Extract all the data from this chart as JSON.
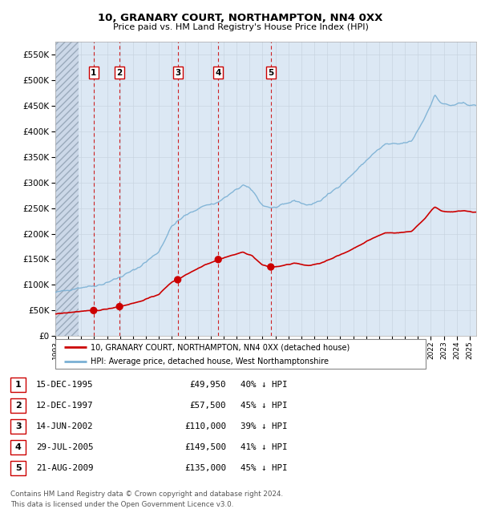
{
  "title": "10, GRANARY COURT, NORTHAMPTON, NN4 0XX",
  "subtitle": "Price paid vs. HM Land Registry's House Price Index (HPI)",
  "legend_property": "10, GRANARY COURT, NORTHAMPTON, NN4 0XX (detached house)",
  "legend_hpi": "HPI: Average price, detached house, West Northamptonshire",
  "footer": "Contains HM Land Registry data © Crown copyright and database right 2024.\nThis data is licensed under the Open Government Licence v3.0.",
  "sales": [
    {
      "num": 1,
      "date": "15-DEC-1995",
      "year": 1995.96,
      "price": 49950,
      "pct": "40% ↓ HPI"
    },
    {
      "num": 2,
      "date": "12-DEC-1997",
      "year": 1997.96,
      "price": 57500,
      "pct": "45% ↓ HPI"
    },
    {
      "num": 3,
      "date": "14-JUN-2002",
      "year": 2002.45,
      "price": 110000,
      "pct": "39% ↓ HPI"
    },
    {
      "num": 4,
      "date": "29-JUL-2005",
      "year": 2005.58,
      "price": 149500,
      "pct": "41% ↓ HPI"
    },
    {
      "num": 5,
      "date": "21-AUG-2009",
      "year": 2009.64,
      "price": 135000,
      "pct": "45% ↓ HPI"
    }
  ],
  "property_line_color": "#cc0000",
  "hpi_line_color": "#7ab0d4",
  "sale_marker_color": "#cc0000",
  "vline_color": "#cc0000",
  "grid_color": "#c8d4e0",
  "background_color": "#dce8f4",
  "ylim": [
    0,
    575000
  ],
  "yticks": [
    0,
    50000,
    100000,
    150000,
    200000,
    250000,
    300000,
    350000,
    400000,
    450000,
    500000,
    550000
  ],
  "xlim_start": 1993.0,
  "xlim_end": 2025.5,
  "xticks": [
    1993,
    1994,
    1995,
    1996,
    1997,
    1998,
    1999,
    2000,
    2001,
    2002,
    2003,
    2004,
    2005,
    2006,
    2007,
    2008,
    2009,
    2010,
    2011,
    2012,
    2013,
    2014,
    2015,
    2016,
    2017,
    2018,
    2019,
    2020,
    2021,
    2022,
    2023,
    2024,
    2025
  ]
}
